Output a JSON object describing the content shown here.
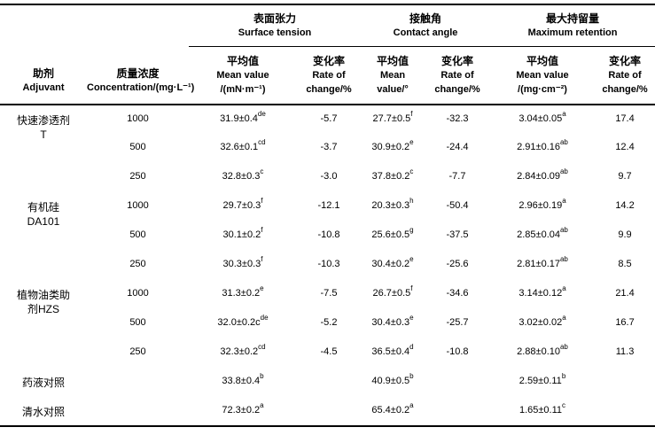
{
  "table": {
    "header": {
      "adjuvant": {
        "lines": [
          "助剂",
          "Adjuvant"
        ]
      },
      "concentration": {
        "lines": [
          "质量浓度",
          "Concentration/(mg·L⁻¹)"
        ]
      },
      "groups": [
        {
          "title_zh": "表面张力",
          "title_en": "Surface tension",
          "columns": [
            {
              "lines": [
                "平均值",
                "Mean value",
                "/(mN·m⁻¹)"
              ]
            },
            {
              "lines": [
                "变化率",
                "Rate of",
                "change/%"
              ]
            }
          ]
        },
        {
          "title_zh": "接触角",
          "title_en": "Contact angle",
          "columns": [
            {
              "lines": [
                "平均值",
                "Mean",
                "value/°"
              ]
            },
            {
              "lines": [
                "变化率",
                "Rate of",
                "change/%"
              ]
            }
          ]
        },
        {
          "title_zh": "最大持留量",
          "title_en": "Maximum retention",
          "columns": [
            {
              "lines": [
                "平均值",
                "Mean value",
                "/(mg·cm⁻²)"
              ]
            },
            {
              "lines": [
                "变化率",
                "Rate of",
                "change/%"
              ]
            }
          ]
        }
      ]
    },
    "rows": [
      {
        "adjuvant": {
          "lines": [
            "快速渗透剂",
            "T"
          ],
          "rowspan": 3
        },
        "concentration": "1000",
        "values": [
          {
            "v": "31.9±0.4",
            "sup": "de"
          },
          {
            "v": "-5.7"
          },
          {
            "v": "27.7±0.5",
            "sup": "f"
          },
          {
            "v": "-32.3"
          },
          {
            "v": "3.04±0.05",
            "sup": "a"
          },
          {
            "v": "17.4"
          }
        ]
      },
      {
        "concentration": "500",
        "values": [
          {
            "v": "32.6±0.1",
            "sup": "cd"
          },
          {
            "v": "-3.7"
          },
          {
            "v": "30.9±0.2",
            "sup": "e"
          },
          {
            "v": "-24.4"
          },
          {
            "v": "2.91±0.16",
            "sup": "ab"
          },
          {
            "v": "12.4"
          }
        ]
      },
      {
        "concentration": "250",
        "values": [
          {
            "v": "32.8±0.3",
            "sup": "c"
          },
          {
            "v": "-3.0"
          },
          {
            "v": "37.8±0.2",
            "sup": "c"
          },
          {
            "v": "-7.7"
          },
          {
            "v": "2.84±0.09",
            "sup": "ab"
          },
          {
            "v": "9.7"
          }
        ]
      },
      {
        "adjuvant": {
          "lines": [
            "有机硅",
            "DA101"
          ],
          "rowspan": 3
        },
        "concentration": "1000",
        "values": [
          {
            "v": "29.7±0.3",
            "sup": "f"
          },
          {
            "v": "-12.1"
          },
          {
            "v": "20.3±0.3",
            "sup": "h"
          },
          {
            "v": "-50.4"
          },
          {
            "v": "2.96±0.19",
            "sup": "a"
          },
          {
            "v": "14.2"
          }
        ]
      },
      {
        "concentration": "500",
        "values": [
          {
            "v": "30.1±0.2",
            "sup": "f"
          },
          {
            "v": "-10.8"
          },
          {
            "v": "25.6±0.5",
            "sup": "g"
          },
          {
            "v": "-37.5"
          },
          {
            "v": "2.85±0.04",
            "sup": "ab"
          },
          {
            "v": "9.9"
          }
        ]
      },
      {
        "concentration": "250",
        "values": [
          {
            "v": "30.3±0.3",
            "sup": "f"
          },
          {
            "v": "-10.3"
          },
          {
            "v": "30.4±0.2",
            "sup": "e"
          },
          {
            "v": "-25.6"
          },
          {
            "v": "2.81±0.17",
            "sup": "ab"
          },
          {
            "v": "8.5"
          }
        ]
      },
      {
        "adjuvant": {
          "lines": [
            "植物油类助",
            "剂HZS"
          ],
          "rowspan": 3
        },
        "concentration": "1000",
        "values": [
          {
            "v": "31.3±0.2",
            "sup": "e"
          },
          {
            "v": "-7.5"
          },
          {
            "v": "26.7±0.5",
            "sup": "f"
          },
          {
            "v": "-34.6"
          },
          {
            "v": "3.14±0.12",
            "sup": "a"
          },
          {
            "v": "21.4"
          }
        ]
      },
      {
        "concentration": "500",
        "values": [
          {
            "v": "32.0±0.2c",
            "sup": "de"
          },
          {
            "v": "-5.2"
          },
          {
            "v": "30.4±0.3",
            "sup": "e"
          },
          {
            "v": "-25.7"
          },
          {
            "v": "3.02±0.02",
            "sup": "a"
          },
          {
            "v": "16.7"
          }
        ]
      },
      {
        "concentration": "250",
        "values": [
          {
            "v": "32.3±0.2",
            "sup": "cd"
          },
          {
            "v": "-4.5"
          },
          {
            "v": "36.5±0.4",
            "sup": "d"
          },
          {
            "v": "-10.8"
          },
          {
            "v": "2.88±0.10",
            "sup": "ab"
          },
          {
            "v": "11.3"
          }
        ]
      },
      {
        "adjuvant": {
          "lines": [
            "药液对照"
          ],
          "rowspan": 1
        },
        "concentration": "",
        "values": [
          {
            "v": "33.8±0.4",
            "sup": "b"
          },
          {
            "v": ""
          },
          {
            "v": "40.9±0.5",
            "sup": "b"
          },
          {
            "v": ""
          },
          {
            "v": "2.59±0.11",
            "sup": "b"
          },
          {
            "v": ""
          }
        ]
      },
      {
        "adjuvant": {
          "lines": [
            "清水对照"
          ],
          "rowspan": 1
        },
        "concentration": "",
        "values": [
          {
            "v": "72.3±0.2",
            "sup": "a"
          },
          {
            "v": ""
          },
          {
            "v": "65.4±0.2",
            "sup": "a"
          },
          {
            "v": ""
          },
          {
            "v": "1.65±0.11",
            "sup": "c"
          },
          {
            "v": ""
          }
        ]
      }
    ]
  }
}
